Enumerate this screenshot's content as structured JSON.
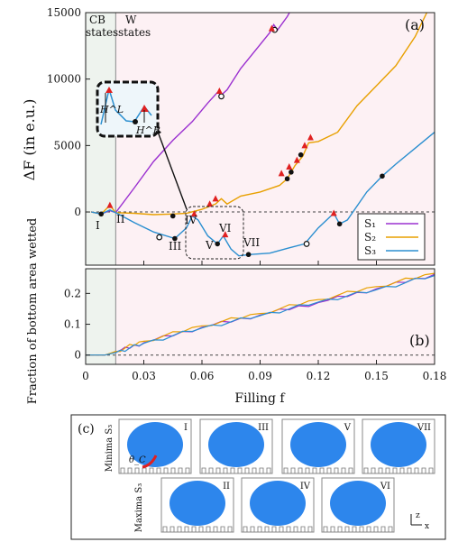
{
  "chart_data": [
    {
      "panel": "(a)",
      "type": "line",
      "ylabel": "ΔF (in e.u.)",
      "ylim": [
        -4000,
        15000
      ],
      "xlim": [
        0,
        0.18
      ],
      "yticks": [
        0,
        5000,
        10000,
        15000
      ],
      "ytick_labels": [
        "0",
        "5000",
        "10000",
        "15000"
      ],
      "region_labels": {
        "cb": "CB",
        "w": "W",
        "states": "states"
      },
      "cb_boundary_x": 0.0155,
      "legend": {
        "placement": "lower-right",
        "entries": [
          "S₁",
          "S₂",
          "S₃"
        ]
      },
      "series": [
        {
          "name": "S₁",
          "color": "#9b30d0",
          "x": [
            0.003,
            0.008,
            0.0125,
            0.0155,
            0.025,
            0.035,
            0.045,
            0.055,
            0.063,
            0.068,
            0.07,
            0.073,
            0.08,
            0.09,
            0.095,
            0.097,
            0.099,
            0.104,
            0.109
          ],
          "y": [
            0,
            -150,
            100,
            -50,
            1800,
            3800,
            5400,
            6800,
            8200,
            9000,
            8800,
            9200,
            10800,
            12600,
            13500,
            14100,
            13700,
            14700,
            16000
          ]
        },
        {
          "name": "S₂",
          "color": "#e8a000",
          "x": [
            0.003,
            0.008,
            0.0125,
            0.0155,
            0.025,
            0.035,
            0.045,
            0.052,
            0.06,
            0.067,
            0.07,
            0.073,
            0.08,
            0.09,
            0.1,
            0.104,
            0.106,
            0.108,
            0.112,
            0.115,
            0.12,
            0.13,
            0.14,
            0.15,
            0.16,
            0.17,
            0.176,
            0.18
          ],
          "y": [
            0,
            -150,
            500,
            -50,
            -100,
            -200,
            -150,
            -100,
            200,
            600,
            1000,
            600,
            1200,
            1500,
            2000,
            2500,
            3000,
            3500,
            4200,
            5200,
            5300,
            6000,
            8000,
            9500,
            11000,
            13200,
            15000,
            16000
          ]
        },
        {
          "name": "S₃",
          "color": "#2b8fd0",
          "x": [
            0.003,
            0.008,
            0.0125,
            0.0155,
            0.025,
            0.035,
            0.046,
            0.052,
            0.055,
            0.058,
            0.063,
            0.068,
            0.071,
            0.075,
            0.079,
            0.085,
            0.095,
            0.105,
            0.113,
            0.12,
            0.128,
            0.131,
            0.135,
            0.145,
            0.153,
            0.16,
            0.17,
            0.18
          ],
          "y": [
            0,
            -150,
            150,
            -50,
            -800,
            -1500,
            -2000,
            -1200,
            -300,
            -600,
            -1800,
            -2400,
            -1800,
            -2800,
            -3300,
            -3200,
            -3100,
            -2700,
            -2400,
            -1200,
            -100,
            -900,
            -600,
            1500,
            2700,
            3600,
            4800,
            6000
          ]
        }
      ],
      "markers": {
        "minima_black": [
          {
            "x": 0.008,
            "y": -150
          },
          {
            "x": 0.045,
            "y": -300
          },
          {
            "x": 0.046,
            "y": -2000
          },
          {
            "x": 0.068,
            "y": -2400
          },
          {
            "x": 0.084,
            "y": -3200
          },
          {
            "x": 0.07,
            "y": 8700
          },
          {
            "x": 0.0975,
            "y": 13700
          },
          {
            "x": 0.104,
            "y": 2500
          },
          {
            "x": 0.106,
            "y": 3000
          },
          {
            "x": 0.111,
            "y": 4300
          },
          {
            "x": 0.131,
            "y": -900
          },
          {
            "x": 0.153,
            "y": 2700
          }
        ],
        "open_circles": [
          {
            "x": 0.038,
            "y": -1900
          },
          {
            "x": 0.07,
            "y": 8700
          },
          {
            "x": 0.0975,
            "y": 13700
          },
          {
            "x": 0.114,
            "y": -2400
          }
        ],
        "maxima_triangles": [
          {
            "x": 0.0125,
            "y": 500
          },
          {
            "x": 0.056,
            "y": -150
          },
          {
            "x": 0.064,
            "y": 600
          },
          {
            "x": 0.067,
            "y": 1000
          },
          {
            "x": 0.072,
            "y": -1700
          },
          {
            "x": 0.069,
            "y": 9100
          },
          {
            "x": 0.096,
            "y": 13800
          },
          {
            "x": 0.101,
            "y": 2900
          },
          {
            "x": 0.105,
            "y": 3400
          },
          {
            "x": 0.109,
            "y": 3900
          },
          {
            "x": 0.113,
            "y": 5000
          },
          {
            "x": 0.116,
            "y": 5600
          },
          {
            "x": 0.128,
            "y": -100
          }
        ]
      },
      "point_labels": [
        "I",
        "II",
        "III",
        "IV",
        "V",
        "VI",
        "VII"
      ],
      "inset": {
        "labels": [
          "H^L",
          "H^R"
        ]
      }
    },
    {
      "panel": "(b)",
      "type": "line",
      "ylabel": "Fraction of bottom area wetted",
      "xlabel": "Filling f",
      "xlim": [
        0,
        0.18
      ],
      "ylim": [
        -0.03,
        0.28
      ],
      "yticks": [
        0,
        0.1,
        0.2
      ],
      "ytick_labels": [
        "0",
        "0.1",
        "0.2"
      ],
      "xticks": [
        0,
        0.03,
        0.06,
        0.09,
        0.12,
        0.15,
        0.18
      ],
      "xtick_labels": [
        "0",
        "0.03",
        "0.06",
        "0.09",
        "0.12",
        "0.15",
        "0.18"
      ],
      "series": [
        {
          "name": "S₁",
          "color": "#9b30d0",
          "x": [
            0,
            0.01,
            0.0155,
            0.03,
            0.06,
            0.09,
            0.12,
            0.15,
            0.18
          ],
          "y": [
            0,
            0,
            0.01,
            0.04,
            0.09,
            0.13,
            0.17,
            0.215,
            0.262
          ]
        },
        {
          "name": "S₂",
          "color": "#e8a000",
          "x": [
            0,
            0.01,
            0.0155,
            0.03,
            0.06,
            0.09,
            0.12,
            0.15,
            0.18
          ],
          "y": [
            0,
            0,
            0.012,
            0.045,
            0.095,
            0.135,
            0.18,
            0.222,
            0.265
          ]
        },
        {
          "name": "S₃",
          "color": "#2b8fd0",
          "x": [
            0,
            0.01,
            0.0155,
            0.03,
            0.06,
            0.09,
            0.12,
            0.15,
            0.18
          ],
          "y": [
            0,
            0,
            0.008,
            0.038,
            0.088,
            0.128,
            0.172,
            0.212,
            0.258
          ]
        }
      ]
    }
  ],
  "panel_c": {
    "label": "(c)",
    "minima_label": "Minima S₃",
    "maxima_label": "Maxima S₃",
    "minima_frames": [
      "I",
      "III",
      "V",
      "VII"
    ],
    "maxima_frames": [
      "II",
      "IV",
      "VI"
    ],
    "angle_label": "θ_C",
    "axis_z": "z",
    "axis_x": "x"
  },
  "colors": {
    "shade_cb": "#eef3ee",
    "shade_w": "#fdf1f4",
    "droplet": "#2d86ec",
    "marker_triangle": "#e02020"
  }
}
